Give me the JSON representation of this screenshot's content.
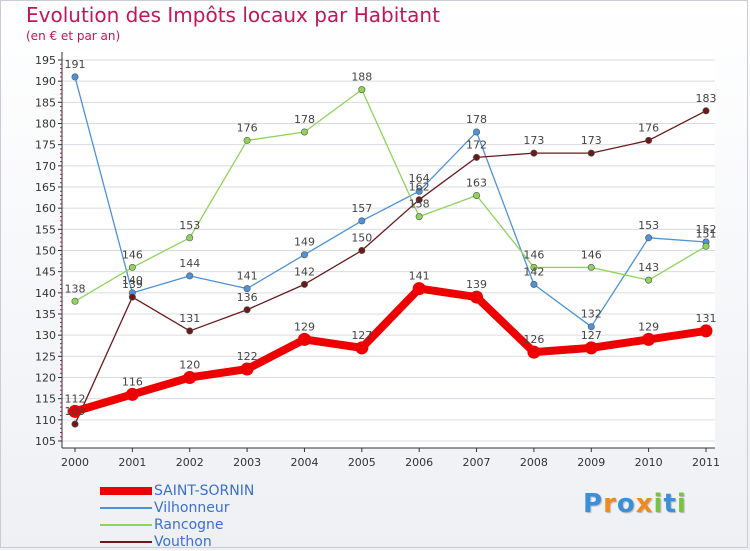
{
  "title": "Evolution des Impôts locaux par Habitant",
  "subtitle": "(en € et par an)",
  "logo": {
    "text": "Proxiti",
    "letters": [
      "P",
      "r",
      "o",
      "x",
      "i",
      "t",
      "i"
    ],
    "colors": [
      "#3a8fd8",
      "#f08a1c",
      "#3a8fd8",
      "#f08a1c",
      "#7cc242",
      "#3a8fd8",
      "#7cc242"
    ]
  },
  "colors": {
    "title": "#c1175a",
    "axis": "#333333",
    "grid": "#d9dbe3",
    "legend_text": "#3b6fd1"
  },
  "chart_data": {
    "type": "line",
    "x": [
      2000,
      2001,
      2002,
      2003,
      2004,
      2005,
      2006,
      2007,
      2008,
      2009,
      2010,
      2011
    ],
    "xtick_labels": [
      "2000",
      "2001",
      "2002",
      "2003",
      "2004",
      "2005",
      "2006",
      "2007",
      "2008",
      "2009",
      "2010",
      "2011"
    ],
    "ylim": [
      105,
      195
    ],
    "ytick_labels": [
      "105",
      "110",
      "115",
      "120",
      "125",
      "130",
      "135",
      "140",
      "145",
      "150",
      "155",
      "160",
      "165",
      "170",
      "175",
      "180",
      "185",
      "190",
      "195"
    ],
    "grid": "horizontal",
    "legend_position": "bottom-left",
    "series": [
      {
        "name": "SAINT-SORNIN",
        "color": "#ee0000",
        "bold": true,
        "values": [
          112,
          116,
          120,
          122,
          129,
          127,
          141,
          139,
          126,
          127,
          129,
          131
        ],
        "labels": [
          "112",
          "116",
          "120",
          "122",
          "129",
          "127",
          "141",
          "139",
          "126",
          "127",
          "129",
          "131"
        ]
      },
      {
        "name": "Vilhonneur",
        "color": "#4d93d9",
        "bold": false,
        "values": [
          191,
          140,
          144,
          141,
          149,
          157,
          164,
          178,
          142,
          132,
          153,
          152
        ],
        "labels": [
          "191",
          "140",
          "144",
          "141",
          "149",
          "157",
          "164",
          "178",
          "142",
          "132",
          "153",
          "152"
        ]
      },
      {
        "name": "Rancogne",
        "color": "#8fd45a",
        "bold": false,
        "values": [
          138,
          146,
          153,
          176,
          178,
          188,
          158,
          163,
          146,
          146,
          143,
          151
        ],
        "labels": [
          "138",
          "146",
          "153",
          "176",
          "178",
          "188",
          "158",
          "163",
          "146",
          "146",
          "143",
          "151"
        ]
      },
      {
        "name": "Vouthon",
        "color": "#6b1a1a",
        "bold": false,
        "values": [
          109,
          139,
          131,
          136,
          142,
          150,
          162,
          172,
          173,
          173,
          176,
          183
        ],
        "labels": [
          "109",
          "139",
          "131",
          "136",
          "142",
          "150",
          "162",
          "172",
          "173",
          "173",
          "176",
          "183"
        ]
      }
    ]
  }
}
